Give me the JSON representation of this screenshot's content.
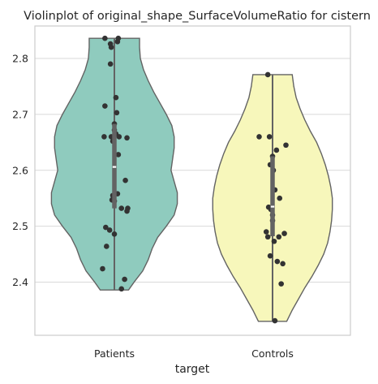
{
  "chart_data": {
    "type": "violin",
    "title": "Violinplot of original_shape_SurfaceVolumeRatio for cistern",
    "xlabel": "target",
    "ylabel": "",
    "categories": [
      "Patients",
      "Controls"
    ],
    "ylim": [
      2.305,
      2.858
    ],
    "yticks": [
      2.4,
      2.5,
      2.6,
      2.7,
      2.8
    ],
    "ytick_labels": [
      "2.4",
      "2.5",
      "2.6",
      "2.7",
      "2.8"
    ],
    "grid": true,
    "colors": {
      "Patients": "#8fcbbe",
      "Controls": "#f7f7bb"
    },
    "series": [
      {
        "category": "Patients",
        "min": 2.386,
        "max": 2.836,
        "q1": 2.532,
        "median": 2.606,
        "q3": 2.683,
        "density": [
          [
            2.386,
            0.18
          ],
          [
            2.4,
            0.25
          ],
          [
            2.42,
            0.36
          ],
          [
            2.44,
            0.43
          ],
          [
            2.46,
            0.48
          ],
          [
            2.48,
            0.55
          ],
          [
            2.5,
            0.66
          ],
          [
            2.52,
            0.76
          ],
          [
            2.54,
            0.8
          ],
          [
            2.56,
            0.8
          ],
          [
            2.58,
            0.76
          ],
          [
            2.6,
            0.72
          ],
          [
            2.62,
            0.74
          ],
          [
            2.64,
            0.76
          ],
          [
            2.66,
            0.76
          ],
          [
            2.68,
            0.73
          ],
          [
            2.7,
            0.66
          ],
          [
            2.72,
            0.58
          ],
          [
            2.74,
            0.5
          ],
          [
            2.76,
            0.43
          ],
          [
            2.78,
            0.37
          ],
          [
            2.8,
            0.33
          ],
          [
            2.82,
            0.32
          ],
          [
            2.836,
            0.32
          ]
        ],
        "points": [
          [
            0.05,
            2.836
          ],
          [
            -0.12,
            2.836
          ],
          [
            0.04,
            2.83
          ],
          [
            -0.05,
            2.826
          ],
          [
            -0.04,
            2.82
          ],
          [
            -0.05,
            2.79
          ],
          [
            0.02,
            2.73
          ],
          [
            -0.12,
            2.715
          ],
          [
            0.03,
            2.703
          ],
          [
            0.0,
            2.683
          ],
          [
            0.0,
            2.672
          ],
          [
            0.02,
            2.665
          ],
          [
            -0.13,
            2.66
          ],
          [
            -0.04,
            2.66
          ],
          [
            0.06,
            2.66
          ],
          [
            0.16,
            2.658
          ],
          [
            -0.02,
            2.652
          ],
          [
            0.05,
            2.628
          ],
          [
            0.14,
            2.582
          ],
          [
            0.04,
            2.558
          ],
          [
            -0.02,
            2.555
          ],
          [
            -0.03,
            2.547
          ],
          [
            0.0,
            2.545
          ],
          [
            0.09,
            2.532
          ],
          [
            0.17,
            2.532
          ],
          [
            0.16,
            2.527
          ],
          [
            -0.11,
            2.498
          ],
          [
            -0.06,
            2.493
          ],
          [
            0.0,
            2.486
          ],
          [
            -0.1,
            2.464
          ],
          [
            -0.15,
            2.424
          ],
          [
            0.13,
            2.405
          ],
          [
            0.09,
            2.388
          ]
        ]
      },
      {
        "category": "Controls",
        "min": 2.33,
        "max": 2.771,
        "q1": 2.482,
        "median": 2.535,
        "q3": 2.625,
        "density": [
          [
            2.33,
            0.18
          ],
          [
            2.35,
            0.25
          ],
          [
            2.37,
            0.33
          ],
          [
            2.39,
            0.41
          ],
          [
            2.41,
            0.5
          ],
          [
            2.43,
            0.58
          ],
          [
            2.45,
            0.65
          ],
          [
            2.47,
            0.7
          ],
          [
            2.49,
            0.73
          ],
          [
            2.51,
            0.75
          ],
          [
            2.53,
            0.76
          ],
          [
            2.55,
            0.76
          ],
          [
            2.57,
            0.74
          ],
          [
            2.59,
            0.71
          ],
          [
            2.61,
            0.67
          ],
          [
            2.63,
            0.62
          ],
          [
            2.65,
            0.56
          ],
          [
            2.67,
            0.48
          ],
          [
            2.69,
            0.41
          ],
          [
            2.71,
            0.35
          ],
          [
            2.73,
            0.3
          ],
          [
            2.75,
            0.27
          ],
          [
            2.771,
            0.25
          ]
        ],
        "points": [
          [
            -0.06,
            2.771
          ],
          [
            -0.17,
            2.66
          ],
          [
            -0.04,
            2.66
          ],
          [
            0.17,
            2.645
          ],
          [
            0.05,
            2.636
          ],
          [
            0.0,
            2.625
          ],
          [
            -0.03,
            2.61
          ],
          [
            0.01,
            2.6
          ],
          [
            0.03,
            2.565
          ],
          [
            0.09,
            2.55
          ],
          [
            -0.05,
            2.534
          ],
          [
            -0.02,
            2.53
          ],
          [
            0.0,
            2.52
          ],
          [
            0.0,
            2.51
          ],
          [
            -0.08,
            2.49
          ],
          [
            0.15,
            2.487
          ],
          [
            -0.06,
            2.481
          ],
          [
            0.08,
            2.481
          ],
          [
            0.02,
            2.473
          ],
          [
            -0.03,
            2.447
          ],
          [
            0.06,
            2.437
          ],
          [
            0.13,
            2.433
          ],
          [
            0.11,
            2.397
          ],
          [
            0.03,
            2.331
          ]
        ]
      }
    ]
  }
}
